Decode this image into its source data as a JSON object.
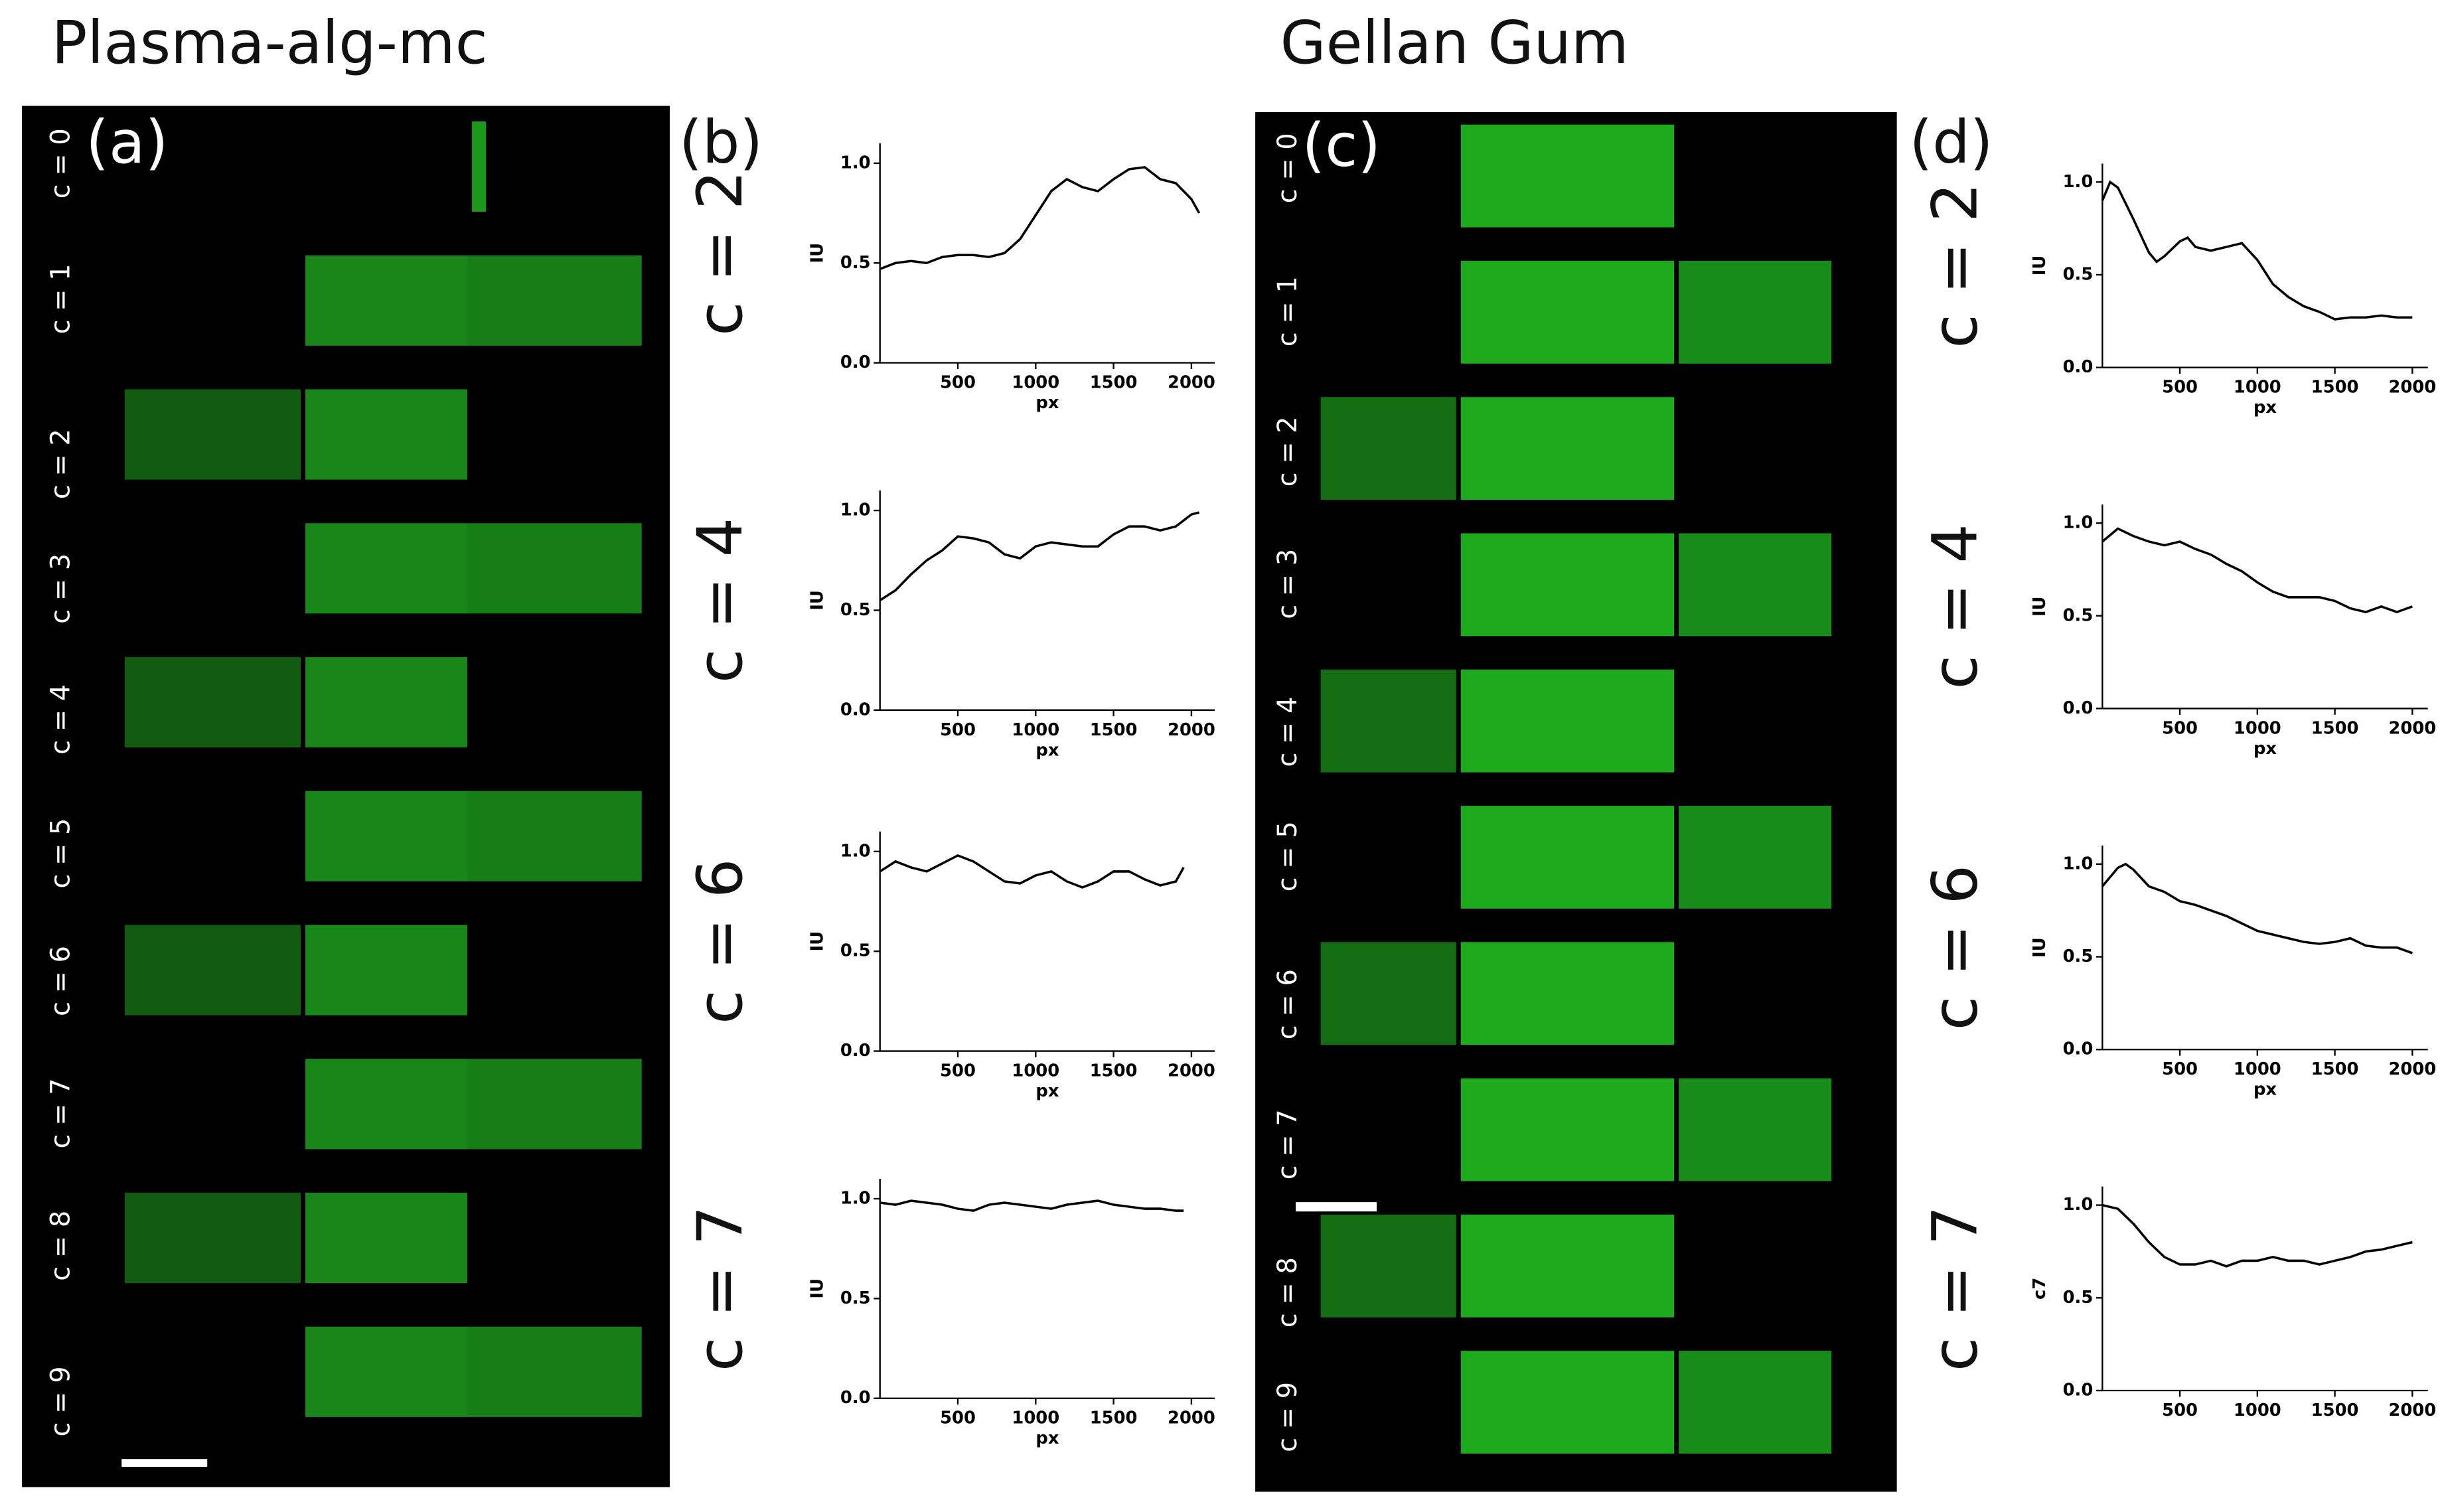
{
  "panels": {
    "left_title": "Plasma-alg-mc",
    "right_title": "Gellan Gum",
    "labels": [
      "(a)",
      "(b)",
      "(c)",
      "(d)"
    ],
    "a_rows": [
      "c = 0",
      "c = 1",
      "c = 2",
      "c = 3",
      "c = 4",
      "c = 5",
      "c = 6",
      "c = 7",
      "c = 8",
      "c = 9"
    ],
    "c_rows": [
      "c = 0",
      "c = 1",
      "c = 2",
      "c = 3",
      "c = 4",
      "c = 5",
      "c = 6",
      "c = 7",
      "c = 8",
      "c = 9"
    ]
  },
  "chart_data": [
    {
      "type": "line",
      "title": "c = 2",
      "xlabel": "px",
      "ylabel": "IU",
      "color": "#000000",
      "x": [
        0,
        100,
        200,
        300,
        400,
        500,
        600,
        700,
        800,
        900,
        1000,
        1100,
        1200,
        1300,
        1400,
        1500,
        1600,
        1700,
        1800,
        1900,
        2000,
        2050
      ],
      "values": [
        0.47,
        0.5,
        0.51,
        0.5,
        0.53,
        0.54,
        0.54,
        0.53,
        0.55,
        0.62,
        0.74,
        0.86,
        0.92,
        0.88,
        0.86,
        0.92,
        0.97,
        0.98,
        0.92,
        0.9,
        0.82,
        0.75
      ],
      "xlim": [
        0,
        2150
      ],
      "xticks": [
        500,
        1000,
        1500,
        2000
      ],
      "ylim": [
        0,
        1.1
      ],
      "yticks": [
        {
          "value": 0,
          "label": "0.0"
        },
        0.5,
        {
          "value": 1,
          "label": "1.0"
        }
      ]
    },
    {
      "type": "line",
      "title": "c = 4",
      "xlabel": "px",
      "ylabel": "IU",
      "color": "#000000",
      "x": [
        0,
        100,
        200,
        300,
        400,
        500,
        600,
        700,
        800,
        900,
        1000,
        1100,
        1200,
        1300,
        1400,
        1500,
        1600,
        1700,
        1800,
        1900,
        2000,
        2050
      ],
      "values": [
        0.55,
        0.6,
        0.68,
        0.75,
        0.8,
        0.87,
        0.86,
        0.84,
        0.78,
        0.76,
        0.82,
        0.84,
        0.83,
        0.82,
        0.82,
        0.88,
        0.92,
        0.92,
        0.9,
        0.92,
        0.98,
        0.99
      ],
      "xlim": [
        0,
        2150
      ],
      "xticks": [
        500,
        1000,
        1500,
        2000
      ],
      "ylim": [
        0,
        1.1
      ],
      "yticks": [
        {
          "value": 0,
          "label": "0.0"
        },
        0.5,
        {
          "value": 1,
          "label": "1.0"
        }
      ]
    },
    {
      "type": "line",
      "title": "c = 6",
      "xlabel": "px",
      "ylabel": "IU",
      "color": "#000000",
      "x": [
        0,
        100,
        200,
        300,
        400,
        500,
        600,
        700,
        800,
        900,
        1000,
        1100,
        1200,
        1300,
        1400,
        1500,
        1600,
        1700,
        1800,
        1900,
        1950
      ],
      "values": [
        0.9,
        0.95,
        0.92,
        0.9,
        0.94,
        0.98,
        0.95,
        0.9,
        0.85,
        0.84,
        0.88,
        0.9,
        0.85,
        0.82,
        0.85,
        0.9,
        0.9,
        0.86,
        0.83,
        0.85,
        0.92
      ],
      "xlim": [
        0,
        2150
      ],
      "xticks": [
        500,
        1000,
        1500,
        2000
      ],
      "ylim": [
        0,
        1.1
      ],
      "yticks": [
        {
          "value": 0,
          "label": "0.0"
        },
        0.5,
        {
          "value": 1,
          "label": "1.0"
        }
      ]
    },
    {
      "type": "line",
      "title": "c = 7",
      "xlabel": "px",
      "ylabel": "IU",
      "color": "#000000",
      "x": [
        0,
        100,
        200,
        300,
        400,
        500,
        600,
        700,
        800,
        900,
        1000,
        1100,
        1200,
        1300,
        1400,
        1500,
        1600,
        1700,
        1800,
        1900,
        1950
      ],
      "values": [
        0.98,
        0.97,
        0.99,
        0.98,
        0.97,
        0.95,
        0.94,
        0.97,
        0.98,
        0.97,
        0.96,
        0.95,
        0.97,
        0.98,
        0.99,
        0.97,
        0.96,
        0.95,
        0.95,
        0.94,
        0.94
      ],
      "xlim": [
        0,
        2150
      ],
      "xticks": [
        500,
        1000,
        1500,
        2000
      ],
      "ylim": [
        0,
        1.1
      ],
      "yticks": [
        {
          "value": 0,
          "label": "0.0"
        },
        0.5,
        {
          "value": 1,
          "label": "1.0"
        }
      ]
    },
    {
      "type": "line",
      "title": "c = 2",
      "xlabel": "px",
      "ylabel": "IU",
      "color": "#000000",
      "x": [
        0,
        50,
        100,
        200,
        300,
        350,
        400,
        500,
        550,
        600,
        700,
        800,
        900,
        1000,
        1100,
        1200,
        1300,
        1400,
        1500,
        1600,
        1700,
        1800,
        1900,
        2000
      ],
      "values": [
        0.9,
        1.0,
        0.97,
        0.8,
        0.62,
        0.57,
        0.6,
        0.68,
        0.7,
        0.65,
        0.63,
        0.65,
        0.67,
        0.58,
        0.45,
        0.38,
        0.33,
        0.3,
        0.26,
        0.27,
        0.27,
        0.28,
        0.27,
        0.27
      ],
      "xlim": [
        0,
        2100
      ],
      "xticks": [
        500,
        1000,
        1500,
        2000
      ],
      "ylim": [
        0,
        1.1
      ],
      "yticks": [
        {
          "value": 0,
          "label": "0.0"
        },
        0.5,
        {
          "value": 1,
          "label": "1.0"
        }
      ]
    },
    {
      "type": "line",
      "title": "c = 4",
      "xlabel": "px",
      "ylabel": "IU",
      "color": "#000000",
      "x": [
        0,
        100,
        200,
        300,
        400,
        500,
        600,
        700,
        800,
        900,
        1000,
        1100,
        1200,
        1300,
        1400,
        1500,
        1600,
        1700,
        1800,
        1900,
        2000
      ],
      "values": [
        0.9,
        0.97,
        0.93,
        0.9,
        0.88,
        0.9,
        0.86,
        0.83,
        0.78,
        0.74,
        0.68,
        0.63,
        0.6,
        0.6,
        0.6,
        0.58,
        0.54,
        0.52,
        0.55,
        0.52,
        0.55
      ],
      "xlim": [
        0,
        2100
      ],
      "xticks": [
        500,
        1000,
        1500,
        2000
      ],
      "ylim": [
        0,
        1.1
      ],
      "yticks": [
        {
          "value": 0,
          "label": "0.0"
        },
        0.5,
        {
          "value": 1,
          "label": "1.0"
        }
      ]
    },
    {
      "type": "line",
      "title": "c = 6",
      "xlabel": "px",
      "ylabel": "IU",
      "color": "#000000",
      "x": [
        0,
        100,
        150,
        200,
        300,
        400,
        500,
        600,
        700,
        800,
        900,
        1000,
        1100,
        1200,
        1300,
        1400,
        1500,
        1600,
        1700,
        1800,
        1900,
        2000
      ],
      "values": [
        0.88,
        0.98,
        1.0,
        0.97,
        0.88,
        0.85,
        0.8,
        0.78,
        0.75,
        0.72,
        0.68,
        0.64,
        0.62,
        0.6,
        0.58,
        0.57,
        0.58,
        0.6,
        0.56,
        0.55,
        0.55,
        0.52
      ],
      "xlim": [
        0,
        2100
      ],
      "xticks": [
        500,
        1000,
        1500,
        2000
      ],
      "ylim": [
        0,
        1.1
      ],
      "yticks": [
        {
          "value": 0,
          "label": "0.0"
        },
        0.5,
        {
          "value": 1,
          "label": "1.0"
        }
      ]
    },
    {
      "type": "line",
      "title": "c = 7",
      "ylabel": "c7",
      "color": "#000000",
      "x": [
        0,
        100,
        200,
        300,
        400,
        500,
        600,
        700,
        800,
        900,
        1000,
        1100,
        1200,
        1300,
        1400,
        1500,
        1600,
        1700,
        1800,
        1900,
        2000
      ],
      "values": [
        1.0,
        0.98,
        0.9,
        0.8,
        0.72,
        0.68,
        0.68,
        0.7,
        0.67,
        0.7,
        0.7,
        0.72,
        0.7,
        0.7,
        0.68,
        0.7,
        0.72,
        0.75,
        0.76,
        0.78,
        0.8
      ],
      "xlim": [
        0,
        2100
      ],
      "xticks": [
        500,
        1000,
        1500,
        2000
      ],
      "ylim": [
        0,
        1.1
      ],
      "yticks": [
        {
          "value": 0,
          "label": "0.0"
        },
        0.5,
        {
          "value": 1,
          "label": "1.0"
        }
      ]
    }
  ]
}
